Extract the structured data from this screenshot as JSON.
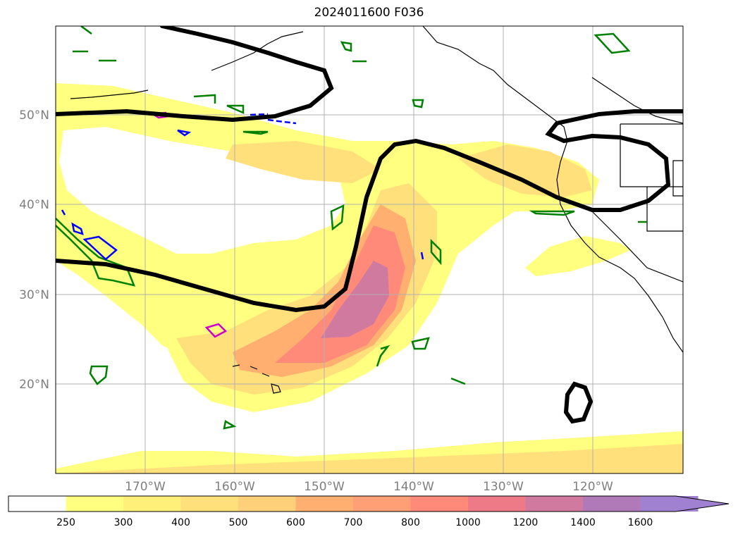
{
  "map": {
    "title": "2024011600 F036",
    "lat_labels": [
      "50°N",
      "40°N",
      "30°N",
      "20°N"
    ],
    "lon_labels": [
      "170°W",
      "160°W",
      "150°W",
      "140°W",
      "130°W",
      "120°W"
    ],
    "extent": {
      "lon": [
        -180,
        -110
      ],
      "lat": [
        10,
        60
      ]
    },
    "contours": {
      "thick_black": "black",
      "green": "#008000",
      "blue": "#0000ff",
      "magenta": "#cc00cc"
    }
  },
  "colorbar": {
    "levels": [
      "250",
      "300",
      "400",
      "500",
      "600",
      "700",
      "800",
      "1000",
      "1200",
      "1400",
      "1600"
    ],
    "colors": [
      "#ffffff",
      "#ffff80",
      "#fff07a",
      "#ffe07a",
      "#ffd07a",
      "#ffb070",
      "#ff9f75",
      "#ff8a7a",
      "#ee7a88",
      "#d07aa0",
      "#b07ab8",
      "#a080d0"
    ],
    "extend": "max"
  }
}
